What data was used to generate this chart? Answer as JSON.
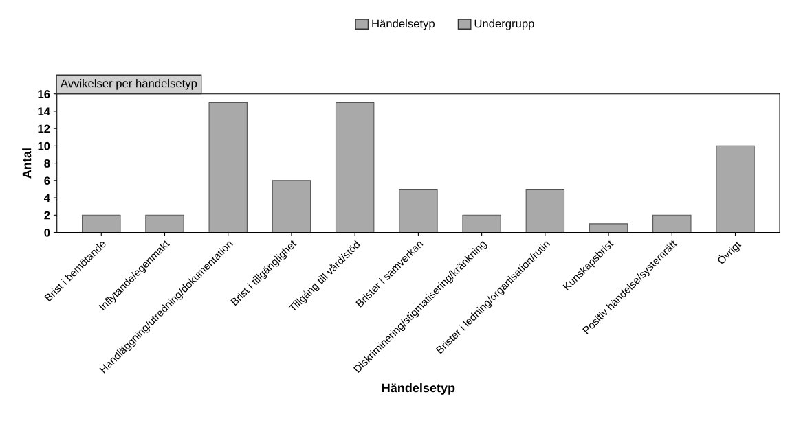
{
  "chart_data": {
    "type": "bar",
    "title": "Avvikelser per händelsetyp",
    "xlabel": "Händelsetyp",
    "ylabel": "Antal",
    "annotations": [
      "Händelsetyp",
      "Undergrupp"
    ],
    "categories": [
      "Brist i bemötande",
      "Inflytande/egenmakt",
      "Handläggning/utredning/dokumentation",
      "Brist i tillgänglighet",
      "Tillgång till vård/stöd",
      "Brister i samverkan",
      "Diskriminering/stigmatisering/kränkning",
      "Brister i ledning/organisation/rutin",
      "Kunskapsbrist",
      "Positiv händelse/systemrätt",
      "Övrigt"
    ],
    "values": [
      2,
      2,
      15,
      6,
      15,
      5,
      2,
      5,
      1,
      2,
      10
    ],
    "color": "#a9a9a9",
    "ylim": [
      0,
      16
    ],
    "yticks": [
      0,
      2,
      4,
      6,
      8,
      10,
      12,
      14,
      16
    ],
    "grid": false
  }
}
